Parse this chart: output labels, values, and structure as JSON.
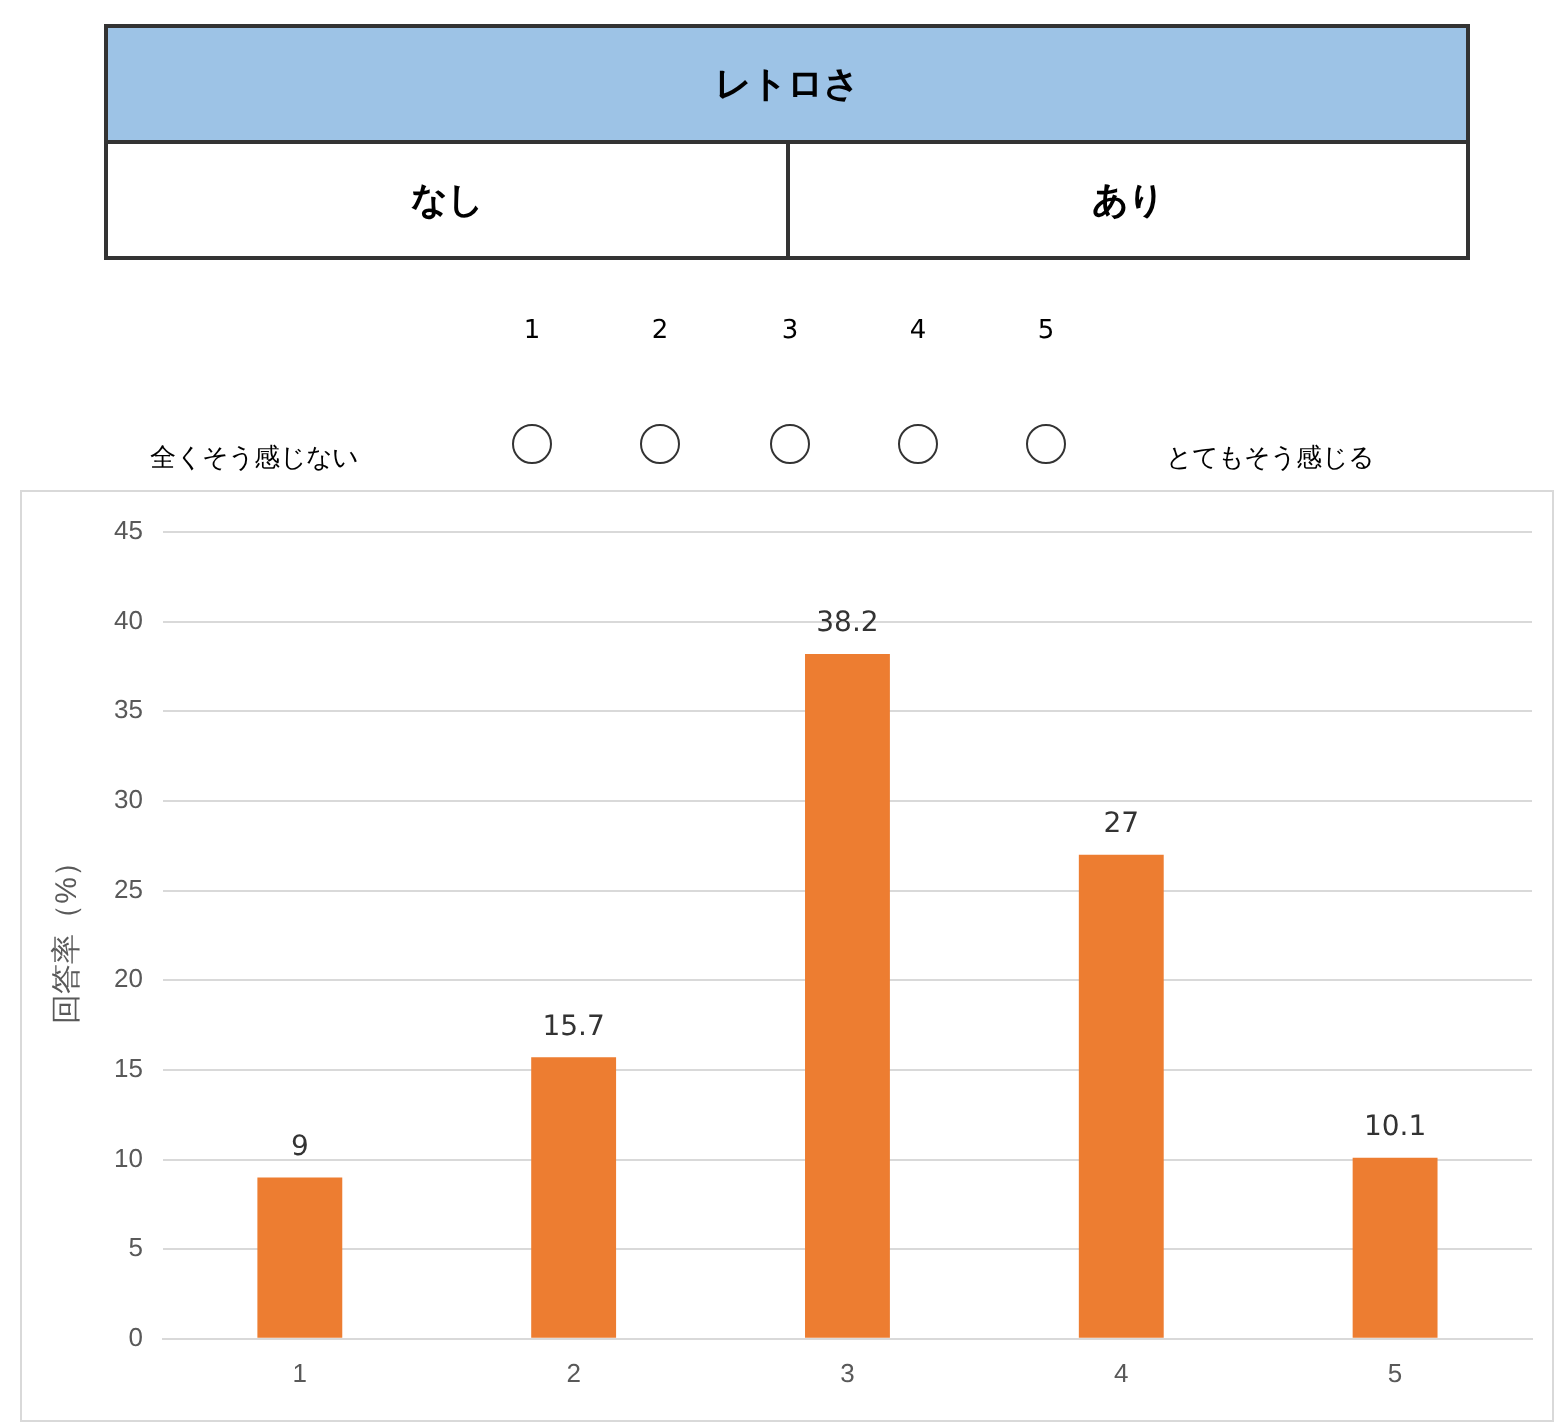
{
  "chart_data": {
    "type": "bar",
    "ylabel": "回答率（%）",
    "annotations": [
      "レトロさ",
      "なし",
      "あり",
      "1",
      "2",
      "3",
      "4",
      "5",
      "全くそう感じない",
      "とてもそう感じる"
    ],
    "categories": [
      "1",
      "2",
      "3",
      "4",
      "5"
    ],
    "values": [
      9,
      15.7,
      38.2,
      27,
      10.1
    ],
    "color": "#ed7d31",
    "ylim": [
      0,
      45
    ],
    "yticks": [
      0,
      5,
      10,
      15,
      20,
      25,
      30,
      35,
      40,
      45
    ],
    "grid": "y",
    "data_labels": true
  }
}
